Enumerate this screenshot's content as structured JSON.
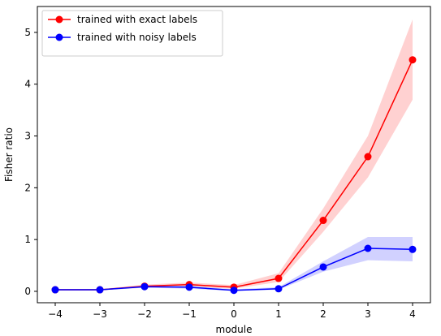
{
  "chart_data": {
    "type": "line",
    "title": "",
    "xlabel": "module",
    "ylabel": "Fisher ratio",
    "x": [
      -4,
      -3,
      -2,
      -1,
      0,
      1,
      2,
      3,
      4
    ],
    "xlim": [
      -4.4,
      4.4
    ],
    "ylim": [
      -0.22,
      5.5
    ],
    "xticks": [
      -4,
      -3,
      -2,
      -1,
      0,
      1,
      2,
      3,
      4
    ],
    "yticks": [
      0,
      1,
      2,
      3,
      4,
      5
    ],
    "grid": false,
    "legend_position": "top-left",
    "series": [
      {
        "name": "trained with exact labels",
        "color": "#ff0000",
        "band_color": "#ffcccc",
        "values": [
          0.03,
          0.03,
          0.1,
          0.13,
          0.08,
          0.25,
          1.37,
          2.6,
          4.47
        ],
        "lower": [
          0.02,
          0.02,
          0.07,
          0.09,
          0.05,
          0.18,
          1.15,
          2.2,
          3.7
        ],
        "upper": [
          0.04,
          0.04,
          0.13,
          0.17,
          0.12,
          0.35,
          1.6,
          3.0,
          5.25
        ]
      },
      {
        "name": "trained with noisy labels",
        "color": "#0000ff",
        "band_color": "#ccccff",
        "values": [
          0.03,
          0.03,
          0.09,
          0.08,
          0.02,
          0.05,
          0.47,
          0.83,
          0.81
        ],
        "lower": [
          0.02,
          0.02,
          0.07,
          0.05,
          0.01,
          0.03,
          0.38,
          0.6,
          0.58
        ],
        "upper": [
          0.04,
          0.04,
          0.11,
          0.11,
          0.04,
          0.08,
          0.58,
          1.05,
          1.05
        ]
      }
    ]
  }
}
